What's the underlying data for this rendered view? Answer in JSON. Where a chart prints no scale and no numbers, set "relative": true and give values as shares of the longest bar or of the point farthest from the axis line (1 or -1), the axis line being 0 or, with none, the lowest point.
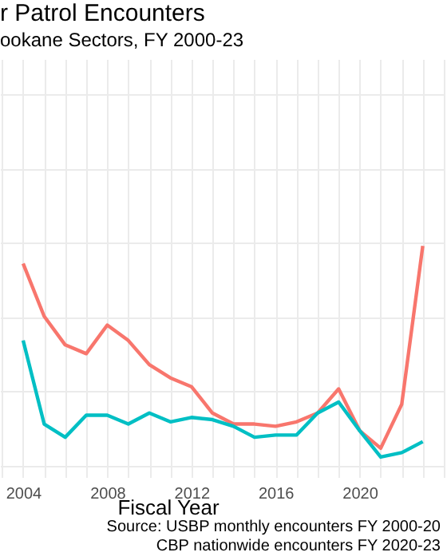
{
  "chart_data": {
    "type": "line",
    "title": "r Patrol Encounters",
    "subtitle": "ookane Sectors, FY 2000-23",
    "xlabel": "Fiscal Year",
    "annotations": [
      "Source: USBP monthly encounters FY 2000-20",
      "CBP nationwide encounters FY 2020-23"
    ],
    "relative": true,
    "x": [
      2004,
      2005,
      2006,
      2007,
      2008,
      2009,
      2010,
      2011,
      2012,
      2013,
      2014,
      2015,
      2016,
      2017,
      2018,
      2019,
      2020,
      2021,
      2022,
      2023
    ],
    "series": [
      {
        "color": "#f8766d",
        "values": [
          0.92,
          0.68,
          0.55,
          0.51,
          0.64,
          0.57,
          0.46,
          0.4,
          0.36,
          0.24,
          0.19,
          0.19,
          0.18,
          0.2,
          0.24,
          0.35,
          0.16,
          0.08,
          0.28,
          1
        ]
      },
      {
        "color": "#00bfc4",
        "values": [
          0.57,
          0.19,
          0.13,
          0.23,
          0.23,
          0.19,
          0.24,
          0.2,
          0.22,
          0.21,
          0.18,
          0.13,
          0.14,
          0.14,
          0.24,
          0.29,
          0.16,
          0.04,
          0.06,
          0.11
        ]
      }
    ],
    "xlim": [
      2002.9,
      2024
    ],
    "xticks": [
      2004,
      2008,
      2012,
      2016,
      2020
    ],
    "grid": true,
    "line_style": "solid",
    "marker": "none"
  }
}
